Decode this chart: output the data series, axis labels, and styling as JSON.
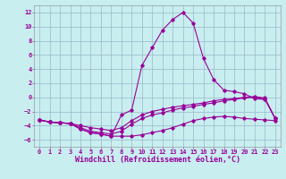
{
  "xlabel": "Windchill (Refroidissement éolien,°C)",
  "bg_color": "#c8eef0",
  "line_color": "#990099",
  "grid_color": "#9ab8c8",
  "ylim": [
    -7,
    13
  ],
  "xlim": [
    -0.5,
    23.5
  ],
  "yticks": [
    -6,
    -4,
    -2,
    0,
    2,
    4,
    6,
    8,
    10,
    12
  ],
  "xticks": [
    0,
    1,
    2,
    3,
    4,
    5,
    6,
    7,
    8,
    9,
    10,
    11,
    12,
    13,
    14,
    15,
    16,
    17,
    18,
    19,
    20,
    21,
    22,
    23
  ],
  "line1_x": [
    0,
    1,
    2,
    3,
    4,
    5,
    6,
    7,
    8,
    9,
    10,
    11,
    12,
    13,
    14,
    15,
    16,
    17,
    18,
    19,
    20,
    21,
    22,
    23
  ],
  "line1_y": [
    -3.2,
    -3.5,
    -3.6,
    -3.7,
    -4.5,
    -5.0,
    -5.2,
    -5.5,
    -5.5,
    -5.5,
    -5.3,
    -5.0,
    -4.7,
    -4.3,
    -3.8,
    -3.3,
    -3.0,
    -2.8,
    -2.7,
    -2.8,
    -3.0,
    -3.1,
    -3.2,
    -3.3
  ],
  "line2_x": [
    0,
    1,
    2,
    3,
    4,
    5,
    6,
    7,
    8,
    9,
    10,
    11,
    12,
    13,
    14,
    15,
    16,
    17,
    18,
    19,
    20,
    21,
    22,
    23
  ],
  "line2_y": [
    -3.2,
    -3.5,
    -3.6,
    -3.7,
    -4.5,
    -5.0,
    -5.2,
    -5.5,
    -2.5,
    -1.8,
    4.5,
    7.0,
    9.5,
    11.0,
    12.0,
    10.5,
    5.5,
    2.5,
    1.0,
    0.8,
    0.5,
    -0.2,
    -0.3,
    -3.0
  ],
  "line3_x": [
    0,
    1,
    2,
    3,
    4,
    5,
    6,
    7,
    8,
    9,
    10,
    11,
    12,
    13,
    14,
    15,
    16,
    17,
    18,
    19,
    20,
    21,
    22,
    23
  ],
  "line3_y": [
    -3.2,
    -3.5,
    -3.6,
    -3.7,
    -4.3,
    -4.8,
    -5.0,
    -5.2,
    -4.8,
    -3.8,
    -3.0,
    -2.5,
    -2.2,
    -1.8,
    -1.5,
    -1.3,
    -1.0,
    -0.8,
    -0.5,
    -0.3,
    -0.1,
    0.0,
    -0.2,
    -3.0
  ],
  "line4_x": [
    0,
    1,
    2,
    3,
    4,
    5,
    6,
    7,
    8,
    9,
    10,
    11,
    12,
    13,
    14,
    15,
    16,
    17,
    18,
    19,
    20,
    21,
    22,
    23
  ],
  "line4_y": [
    -3.2,
    -3.5,
    -3.6,
    -3.7,
    -4.0,
    -4.3,
    -4.5,
    -4.7,
    -4.3,
    -3.3,
    -2.5,
    -2.0,
    -1.7,
    -1.4,
    -1.2,
    -1.0,
    -0.8,
    -0.5,
    -0.3,
    -0.2,
    0.0,
    0.1,
    -0.1,
    -3.0
  ],
  "fontsize_tick": 5.0,
  "fontsize_label": 6.0,
  "tick_color": "#990099",
  "label_color": "#990099",
  "marker_size": 1.8,
  "line_width": 0.8
}
